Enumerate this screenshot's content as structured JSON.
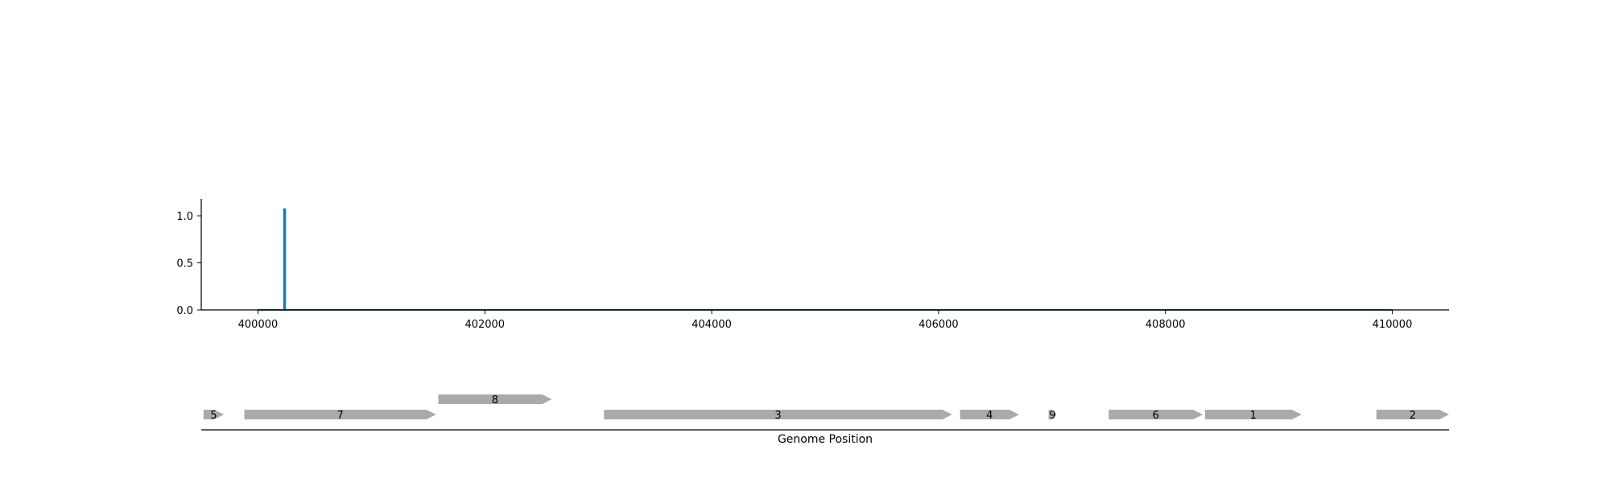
{
  "chart_data": [
    {
      "type": "line",
      "title": "",
      "xlabel": "",
      "ylabel": "",
      "xlim": [
        399500,
        410500
      ],
      "ylim": [
        0,
        1.18
      ],
      "xticks": [
        400000,
        402000,
        404000,
        406000,
        408000,
        410000
      ],
      "yticks": [
        0.0,
        0.5,
        1.0
      ],
      "ytick_format": 1,
      "grid": false,
      "legend": "none",
      "series": [
        {
          "color": "#1f77b4",
          "x": [
            400000,
            400230,
            400230,
            400240,
            400240,
            410000
          ],
          "y": [
            0,
            0,
            1.07,
            1.07,
            0,
            0
          ]
        }
      ]
    },
    {
      "type": "gene-map",
      "xlabel": "Genome Position",
      "xlim": [
        399500,
        410500
      ],
      "gene_color": "#aaaaaa",
      "genes": [
        {
          "label": "5",
          "start": 399520,
          "end": 399700,
          "strand": "+",
          "row": 0
        },
        {
          "label": "7",
          "start": 399880,
          "end": 401570,
          "strand": "+",
          "row": 0
        },
        {
          "label": "8",
          "start": 401590,
          "end": 402590,
          "strand": "+",
          "row": 1
        },
        {
          "label": "3",
          "start": 403050,
          "end": 406120,
          "strand": "+",
          "row": 0
        },
        {
          "label": "4",
          "start": 406190,
          "end": 406710,
          "strand": "+",
          "row": 0
        },
        {
          "label": "9",
          "start": 406970,
          "end": 407040,
          "strand": "+",
          "row": 0
        },
        {
          "label": "6",
          "start": 407500,
          "end": 408330,
          "strand": "+",
          "row": 0
        },
        {
          "label": "1",
          "start": 408350,
          "end": 409200,
          "strand": "+",
          "row": 0
        },
        {
          "label": "2",
          "start": 409860,
          "end": 410500,
          "strand": "+",
          "row": 0
        }
      ]
    }
  ]
}
